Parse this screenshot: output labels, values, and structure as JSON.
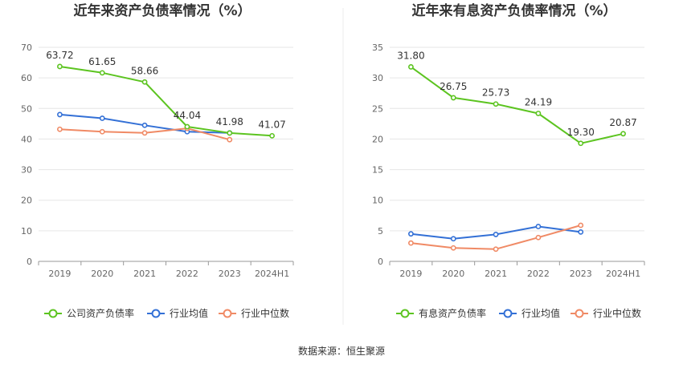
{
  "footer": {
    "source": "数据来源：恒生聚源"
  },
  "chart_data": [
    {
      "type": "line",
      "title": "近年来资产负债率情况（%）",
      "categories": [
        "2019",
        "2020",
        "2021",
        "2022",
        "2023",
        "2024H1"
      ],
      "ylim": [
        0,
        70
      ],
      "yticks": [
        0,
        10,
        20,
        30,
        40,
        50,
        60,
        70
      ],
      "grid": true,
      "legend_position": "bottom",
      "series": [
        {
          "name": "公司资产负债率",
          "color": "#5CC420",
          "values": [
            63.72,
            61.65,
            58.66,
            44.04,
            41.98,
            41.07
          ],
          "labels": [
            "63.72",
            "61.65",
            "58.66",
            "44.04",
            "41.98",
            "41.07"
          ]
        },
        {
          "name": "行业均值",
          "color": "#3370D6",
          "values": [
            48.0,
            46.8,
            44.5,
            42.4,
            42.0,
            null
          ],
          "labels": []
        },
        {
          "name": "行业中位数",
          "color": "#F08A65",
          "values": [
            43.2,
            42.4,
            42.0,
            43.5,
            39.8,
            null
          ],
          "labels": []
        }
      ]
    },
    {
      "type": "line",
      "title": "近年来有息资产负债率情况（%）",
      "categories": [
        "2019",
        "2020",
        "2021",
        "2022",
        "2023",
        "2024H1"
      ],
      "ylim": [
        0,
        35
      ],
      "yticks": [
        0,
        5,
        10,
        15,
        20,
        25,
        30,
        35
      ],
      "grid": true,
      "legend_position": "bottom",
      "series": [
        {
          "name": "有息资产负债率",
          "color": "#5CC420",
          "values": [
            31.8,
            26.75,
            25.73,
            24.19,
            19.3,
            20.87
          ],
          "labels": [
            "31.80",
            "26.75",
            "25.73",
            "24.19",
            "19.30",
            "20.87"
          ]
        },
        {
          "name": "行业均值",
          "color": "#3370D6",
          "values": [
            4.5,
            3.7,
            4.4,
            5.7,
            4.8,
            null
          ],
          "labels": []
        },
        {
          "name": "行业中位数",
          "color": "#F08A65",
          "values": [
            3.0,
            2.2,
            2.0,
            3.9,
            5.9,
            null
          ],
          "labels": []
        }
      ]
    }
  ]
}
